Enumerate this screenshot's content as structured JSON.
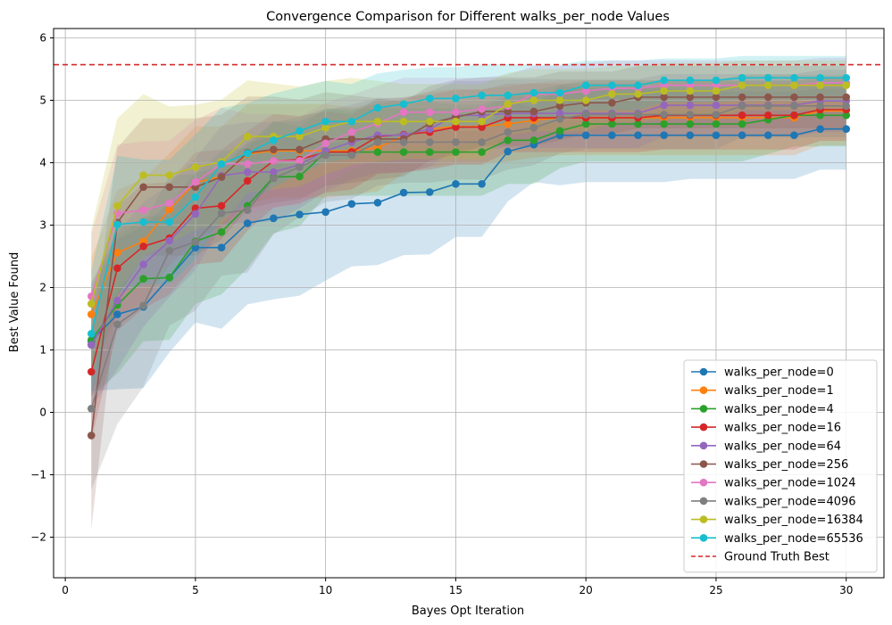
{
  "chart_data": {
    "type": "line",
    "title": "Convergence Comparison for Different walks_per_node Values",
    "xlabel": "Bayes Opt Iteration",
    "ylabel": "Best Value Found",
    "xlim": [
      -0.45,
      31.45
    ],
    "ylim": [
      -2.65,
      6.15
    ],
    "xticks": [
      0,
      5,
      10,
      15,
      20,
      25,
      30
    ],
    "yticks": [
      -2,
      -1,
      0,
      1,
      2,
      3,
      4,
      5,
      6
    ],
    "xtick_labels": [
      "0",
      "5",
      "10",
      "15",
      "20",
      "25",
      "30"
    ],
    "ytick_labels": [
      "−2",
      "−1",
      "0",
      "1",
      "2",
      "3",
      "4",
      "5",
      "6"
    ],
    "grid": true,
    "legend_position": "lower-right",
    "reference_line": {
      "name": "Ground Truth Best",
      "y": 5.57,
      "color": "#d62728",
      "style": "dashed"
    },
    "x": [
      1,
      2,
      3,
      4,
      5,
      6,
      7,
      8,
      9,
      10,
      11,
      12,
      13,
      14,
      15,
      16,
      17,
      18,
      19,
      20,
      21,
      22,
      23,
      24,
      25,
      26,
      27,
      28,
      29,
      30
    ],
    "series": [
      {
        "name": "walks_per_node=0",
        "color": "#1f77b4",
        "values": [
          1.14,
          1.57,
          1.69,
          2.16,
          2.64,
          2.64,
          3.03,
          3.11,
          3.17,
          3.21,
          3.34,
          3.36,
          3.52,
          3.53,
          3.66,
          3.66,
          4.18,
          4.29,
          4.44,
          4.44,
          4.44,
          4.44,
          4.44,
          4.44,
          4.44,
          4.44,
          4.44,
          4.44,
          4.54,
          4.54
        ],
        "band": [
          0.8,
          1.2,
          1.3,
          1.2,
          1.2,
          1.3,
          1.3,
          1.3,
          1.3,
          1.1,
          1.0,
          1.0,
          1.0,
          1.0,
          0.85,
          0.85,
          0.8,
          0.6,
          0.8,
          0.75,
          0.75,
          0.75,
          0.75,
          0.7,
          0.7,
          0.7,
          0.7,
          0.7,
          0.65,
          0.65
        ]
      },
      {
        "name": "walks_per_node=1",
        "color": "#ff7f0e",
        "values": [
          1.57,
          2.56,
          2.74,
          3.25,
          3.68,
          3.78,
          4.14,
          4.19,
          4.19,
          4.19,
          4.19,
          4.24,
          4.43,
          4.54,
          4.58,
          4.58,
          4.62,
          4.68,
          4.72,
          4.72,
          4.72,
          4.72,
          4.72,
          4.72,
          4.72,
          4.72,
          4.72,
          4.72,
          4.83,
          4.83
        ],
        "band": [
          0.9,
          1.0,
          1.0,
          0.9,
          0.9,
          0.8,
          0.8,
          0.75,
          0.75,
          0.75,
          0.7,
          0.7,
          0.6,
          0.6,
          0.6,
          0.6,
          0.6,
          0.6,
          0.6,
          0.6,
          0.6,
          0.6,
          0.6,
          0.6,
          0.6,
          0.6,
          0.6,
          0.6,
          0.55,
          0.55
        ]
      },
      {
        "name": "walks_per_node=4",
        "color": "#2ca02c",
        "values": [
          1.16,
          1.72,
          2.14,
          2.16,
          2.74,
          2.89,
          3.31,
          3.77,
          3.78,
          4.17,
          4.17,
          4.17,
          4.17,
          4.17,
          4.17,
          4.17,
          4.36,
          4.36,
          4.51,
          4.62,
          4.62,
          4.62,
          4.62,
          4.62,
          4.62,
          4.62,
          4.69,
          4.76,
          4.76,
          4.76
        ],
        "band": [
          0.9,
          1.1,
          1.0,
          1.0,
          1.0,
          1.0,
          1.0,
          0.9,
          0.8,
          0.7,
          0.7,
          0.7,
          0.7,
          0.7,
          0.7,
          0.7,
          0.7,
          0.7,
          0.6,
          0.6,
          0.6,
          0.6,
          0.6,
          0.6,
          0.6,
          0.6,
          0.55,
          0.5,
          0.5,
          0.5
        ]
      },
      {
        "name": "walks_per_node=16",
        "color": "#d62728",
        "values": [
          0.65,
          2.31,
          2.66,
          2.79,
          3.27,
          3.31,
          3.71,
          4.03,
          4.05,
          4.17,
          4.17,
          4.42,
          4.45,
          4.49,
          4.57,
          4.57,
          4.72,
          4.72,
          4.72,
          4.72,
          4.72,
          4.72,
          4.76,
          4.76,
          4.76,
          4.76,
          4.76,
          4.76,
          4.85,
          4.85
        ],
        "band": [
          1.1,
          1.0,
          1.0,
          0.9,
          0.9,
          0.9,
          0.8,
          0.75,
          0.7,
          0.65,
          0.6,
          0.6,
          0.6,
          0.6,
          0.6,
          0.6,
          0.55,
          0.55,
          0.55,
          0.55,
          0.55,
          0.55,
          0.55,
          0.55,
          0.55,
          0.55,
          0.55,
          0.55,
          0.5,
          0.5
        ]
      },
      {
        "name": "walks_per_node=64",
        "color": "#9467bd",
        "values": [
          1.08,
          1.79,
          2.37,
          2.75,
          3.18,
          3.79,
          3.85,
          3.85,
          3.97,
          4.19,
          4.33,
          4.44,
          4.44,
          4.54,
          4.76,
          4.76,
          4.79,
          4.79,
          4.79,
          4.79,
          4.79,
          4.79,
          4.92,
          4.92,
          4.92,
          4.92,
          4.92,
          4.92,
          4.99,
          4.99
        ],
        "band": [
          1.0,
          1.1,
          1.0,
          0.9,
          0.9,
          0.8,
          0.8,
          0.8,
          0.7,
          0.65,
          0.6,
          0.6,
          0.6,
          0.6,
          0.55,
          0.55,
          0.55,
          0.55,
          0.55,
          0.55,
          0.55,
          0.55,
          0.5,
          0.5,
          0.5,
          0.5,
          0.5,
          0.5,
          0.5,
          0.5
        ]
      },
      {
        "name": "walks_per_node=256",
        "color": "#8c564b",
        "values": [
          -0.37,
          3.04,
          3.61,
          3.61,
          3.61,
          3.77,
          4.16,
          4.21,
          4.21,
          4.38,
          4.38,
          4.38,
          4.38,
          4.63,
          4.73,
          4.82,
          4.82,
          4.82,
          4.91,
          4.96,
          4.96,
          5.05,
          5.05,
          5.05,
          5.05,
          5.05,
          5.05,
          5.05,
          5.05,
          5.05
        ],
        "band": [
          1.5,
          1.2,
          1.1,
          1.1,
          1.1,
          1.0,
          0.9,
          0.85,
          0.8,
          0.75,
          0.7,
          0.65,
          0.6,
          0.6,
          0.6,
          0.55,
          0.55,
          0.55,
          0.55,
          0.5,
          0.5,
          0.5,
          0.5,
          0.5,
          0.5,
          0.5,
          0.5,
          0.5,
          0.5,
          0.5
        ]
      },
      {
        "name": "walks_per_node=1024",
        "color": "#e377c2",
        "values": [
          1.86,
          3.19,
          3.24,
          3.35,
          3.69,
          3.98,
          3.98,
          4.03,
          4.03,
          4.31,
          4.49,
          4.63,
          4.81,
          4.81,
          4.81,
          4.86,
          4.91,
          5.1,
          5.1,
          5.15,
          5.19,
          5.19,
          5.24,
          5.24,
          5.24,
          5.24,
          5.24,
          5.24,
          5.28,
          5.28
        ],
        "band": [
          1.0,
          1.1,
          1.1,
          1.0,
          1.0,
          0.9,
          0.8,
          0.75,
          0.7,
          0.65,
          0.6,
          0.6,
          0.55,
          0.55,
          0.55,
          0.5,
          0.5,
          0.45,
          0.45,
          0.45,
          0.45,
          0.45,
          0.4,
          0.4,
          0.4,
          0.4,
          0.4,
          0.4,
          0.4,
          0.4
        ]
      },
      {
        "name": "walks_per_node=4096",
        "color": "#7f7f7f",
        "values": [
          0.06,
          1.41,
          1.71,
          2.59,
          2.73,
          3.19,
          3.24,
          3.75,
          3.93,
          4.12,
          4.12,
          4.33,
          4.33,
          4.33,
          4.33,
          4.33,
          4.49,
          4.56,
          4.7,
          4.77,
          4.77,
          4.77,
          4.77,
          4.77,
          4.77,
          4.91,
          4.91,
          4.91,
          4.91,
          4.91
        ],
        "band": [
          1.3,
          1.6,
          1.3,
          1.2,
          1.1,
          1.0,
          1.0,
          0.9,
          0.8,
          0.75,
          0.7,
          0.7,
          0.65,
          0.65,
          0.6,
          0.6,
          0.6,
          0.6,
          0.55,
          0.55,
          0.55,
          0.55,
          0.55,
          0.55,
          0.55,
          0.5,
          0.5,
          0.5,
          0.5,
          0.5
        ]
      },
      {
        "name": "walks_per_node=16384",
        "color": "#bcbd22",
        "values": [
          1.74,
          3.31,
          3.8,
          3.8,
          3.93,
          4.01,
          4.42,
          4.42,
          4.42,
          4.56,
          4.66,
          4.66,
          4.66,
          4.66,
          4.66,
          4.66,
          4.94,
          5.0,
          5.0,
          5.0,
          5.1,
          5.1,
          5.15,
          5.15,
          5.15,
          5.24,
          5.24,
          5.24,
          5.24,
          5.24
        ],
        "band": [
          1.2,
          1.4,
          1.3,
          1.1,
          1.0,
          1.0,
          0.9,
          0.85,
          0.8,
          0.75,
          0.7,
          0.65,
          0.6,
          0.6,
          0.6,
          0.6,
          0.5,
          0.5,
          0.5,
          0.5,
          0.45,
          0.45,
          0.45,
          0.45,
          0.45,
          0.4,
          0.4,
          0.4,
          0.4,
          0.4
        ]
      },
      {
        "name": "walks_per_node=65536",
        "color": "#17becf",
        "values": [
          1.26,
          3.01,
          3.05,
          3.05,
          3.45,
          3.98,
          4.15,
          4.36,
          4.51,
          4.66,
          4.66,
          4.88,
          4.94,
          5.03,
          5.03,
          5.08,
          5.08,
          5.12,
          5.12,
          5.24,
          5.24,
          5.24,
          5.32,
          5.32,
          5.32,
          5.36,
          5.36,
          5.36,
          5.36,
          5.36
        ],
        "band": [
          1.0,
          1.1,
          1.0,
          1.0,
          1.0,
          0.9,
          0.8,
          0.75,
          0.7,
          0.65,
          0.6,
          0.55,
          0.55,
          0.5,
          0.5,
          0.5,
          0.5,
          0.45,
          0.45,
          0.4,
          0.4,
          0.4,
          0.35,
          0.35,
          0.35,
          0.35,
          0.35,
          0.35,
          0.35,
          0.35
        ]
      }
    ]
  }
}
